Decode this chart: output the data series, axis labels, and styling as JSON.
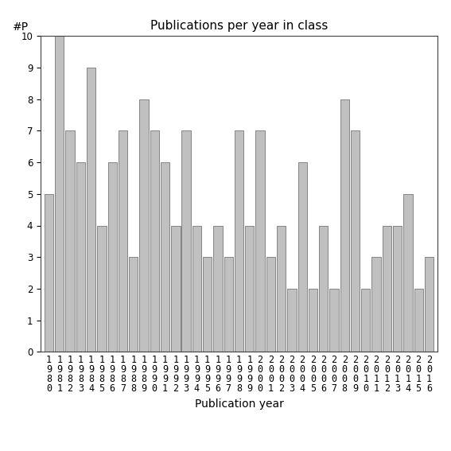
{
  "categories": [
    "1980",
    "1981",
    "1982",
    "1983",
    "1984",
    "1985",
    "1986",
    "1987",
    "1988",
    "1989",
    "1990",
    "1991",
    "1992",
    "1993",
    "1994",
    "1995",
    "1996",
    "1997",
    "1998",
    "1999",
    "2000",
    "2001",
    "2002",
    "2003",
    "2004",
    "2005",
    "2006",
    "2007",
    "2008",
    "2009",
    "2010",
    "2011",
    "2012",
    "2013",
    "2014",
    "2015",
    "2016"
  ],
  "values": [
    5,
    10,
    7,
    6,
    9,
    4,
    6,
    7,
    3,
    8,
    7,
    6,
    4,
    7,
    4,
    3,
    4,
    3,
    7,
    4,
    7,
    3,
    4,
    2,
    6,
    2,
    4,
    2,
    8,
    7,
    2,
    3,
    4,
    4,
    5,
    2,
    3
  ],
  "bar_color": "#c0c0c0",
  "bar_edgecolor": "#606060",
  "title": "Publications per year in class",
  "xlabel": "Publication year",
  "ylabel_text": "#P",
  "ylim": [
    0,
    10
  ],
  "yticks": [
    0,
    1,
    2,
    3,
    4,
    5,
    6,
    7,
    8,
    9,
    10
  ],
  "title_fontsize": 11,
  "label_fontsize": 10,
  "tick_fontsize": 8.5,
  "ylabel_fontsize": 10,
  "background_color": "#ffffff"
}
